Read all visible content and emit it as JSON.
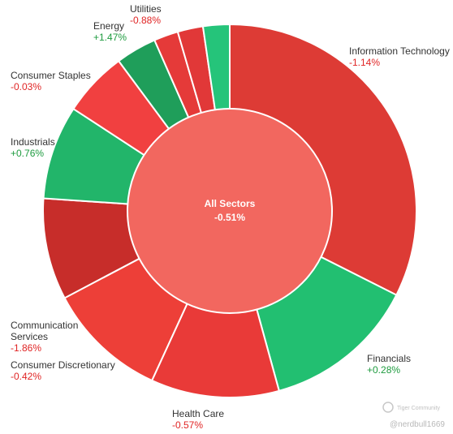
{
  "chart_data": {
    "type": "pie",
    "center": {
      "label": "All Sectors",
      "change": "-0.51%"
    },
    "slices": [
      {
        "name": "Information Technology",
        "change": "-1.14%",
        "weight": 33.9,
        "color": "#dd3b35",
        "label_anchor": "start",
        "label_pos": "right-top"
      },
      {
        "name": "Financials",
        "change": "+0.28%",
        "weight": 13.9,
        "color": "#22bf71",
        "label_anchor": "start",
        "label_pos": "right-bottom"
      },
      {
        "name": "Health Care",
        "change": "-0.57%",
        "weight": 11.6,
        "color": "#e93a38",
        "label_anchor": "start",
        "label_pos": "bottom"
      },
      {
        "name": "Consumer Discretionary",
        "change": "-0.42%",
        "weight": 10.9,
        "color": "#ed3f38",
        "label_anchor": "start",
        "label_pos": "left-bottom"
      },
      {
        "name": "Communication Services",
        "change": "-1.86%",
        "weight": 9.2,
        "color": "#c72d2a",
        "label_anchor": "start",
        "label_pos": "left-lower"
      },
      {
        "name": "Industrials",
        "change": "+0.76%",
        "weight": 8.5,
        "color": "#22b56a",
        "label_anchor": "start",
        "label_pos": "left-mid"
      },
      {
        "name": "Consumer Staples",
        "change": "-0.03%",
        "weight": 5.9,
        "color": "#f14040",
        "label_anchor": "start",
        "label_pos": "left-top"
      },
      {
        "name": "Energy",
        "change": "+1.47%",
        "weight": 3.7,
        "color": "#1f9e5a",
        "label_anchor": "start",
        "label_pos": "top-left"
      },
      {
        "name": "",
        "change": "",
        "weight": 2.2,
        "color": "#e53a39"
      },
      {
        "name": "Utilities",
        "change": "-0.88%",
        "weight": 2.3,
        "color": "#e13838",
        "label_anchor": "start",
        "label_pos": "top"
      },
      {
        "name": "",
        "change": "",
        "weight": 2.4,
        "color": "#25c47a"
      }
    ],
    "center_color": "#f2675f",
    "positive_color": "#1e9b3f",
    "negative_color": "#e02424"
  },
  "watermark": {
    "brand": "Tiger Community",
    "handle": "@nerdbull1669"
  }
}
